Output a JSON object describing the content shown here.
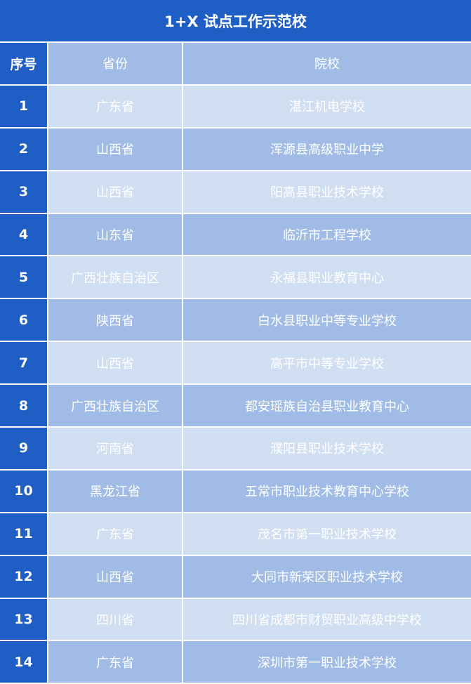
{
  "title": "1+X 试点工作示范校",
  "colors": {
    "primary": "#1f5ec4",
    "header": "#a0bce6",
    "row_light": "#d0def2",
    "row_dark": "#a0bce6"
  },
  "headers": [
    "序号",
    "省份",
    "院校"
  ],
  "rows": [
    [
      "1",
      "广东省",
      "湛江机电学校"
    ],
    [
      "2",
      "山西省",
      "浑源县高级职业中学"
    ],
    [
      "3",
      "山西省",
      "阳高县职业技术学校"
    ],
    [
      "4",
      "山东省",
      "临沂市工程学校"
    ],
    [
      "5",
      "广西壮族自治区",
      "永福县职业教育中心"
    ],
    [
      "6",
      "陕西省",
      "白水县职业中等专业学校"
    ],
    [
      "7",
      "山西省",
      "高平市中等专业学校"
    ],
    [
      "8",
      "广西壮族自治区",
      "都安瑶族自治县职业教育中心"
    ],
    [
      "9",
      "河南省",
      "濮阳县职业技术学校"
    ],
    [
      "10",
      "黑龙江省",
      "五常市职业技术教育中心学校"
    ],
    [
      "11",
      "广东省",
      "茂名市第一职业技术学校"
    ],
    [
      "12",
      "山西省",
      "大同市新荣区职业技术学校"
    ],
    [
      "13",
      "四川省",
      "四川省成都市财贸职业高级中学校"
    ],
    [
      "14",
      "广东省",
      "深圳市第一职业技术学校"
    ]
  ]
}
